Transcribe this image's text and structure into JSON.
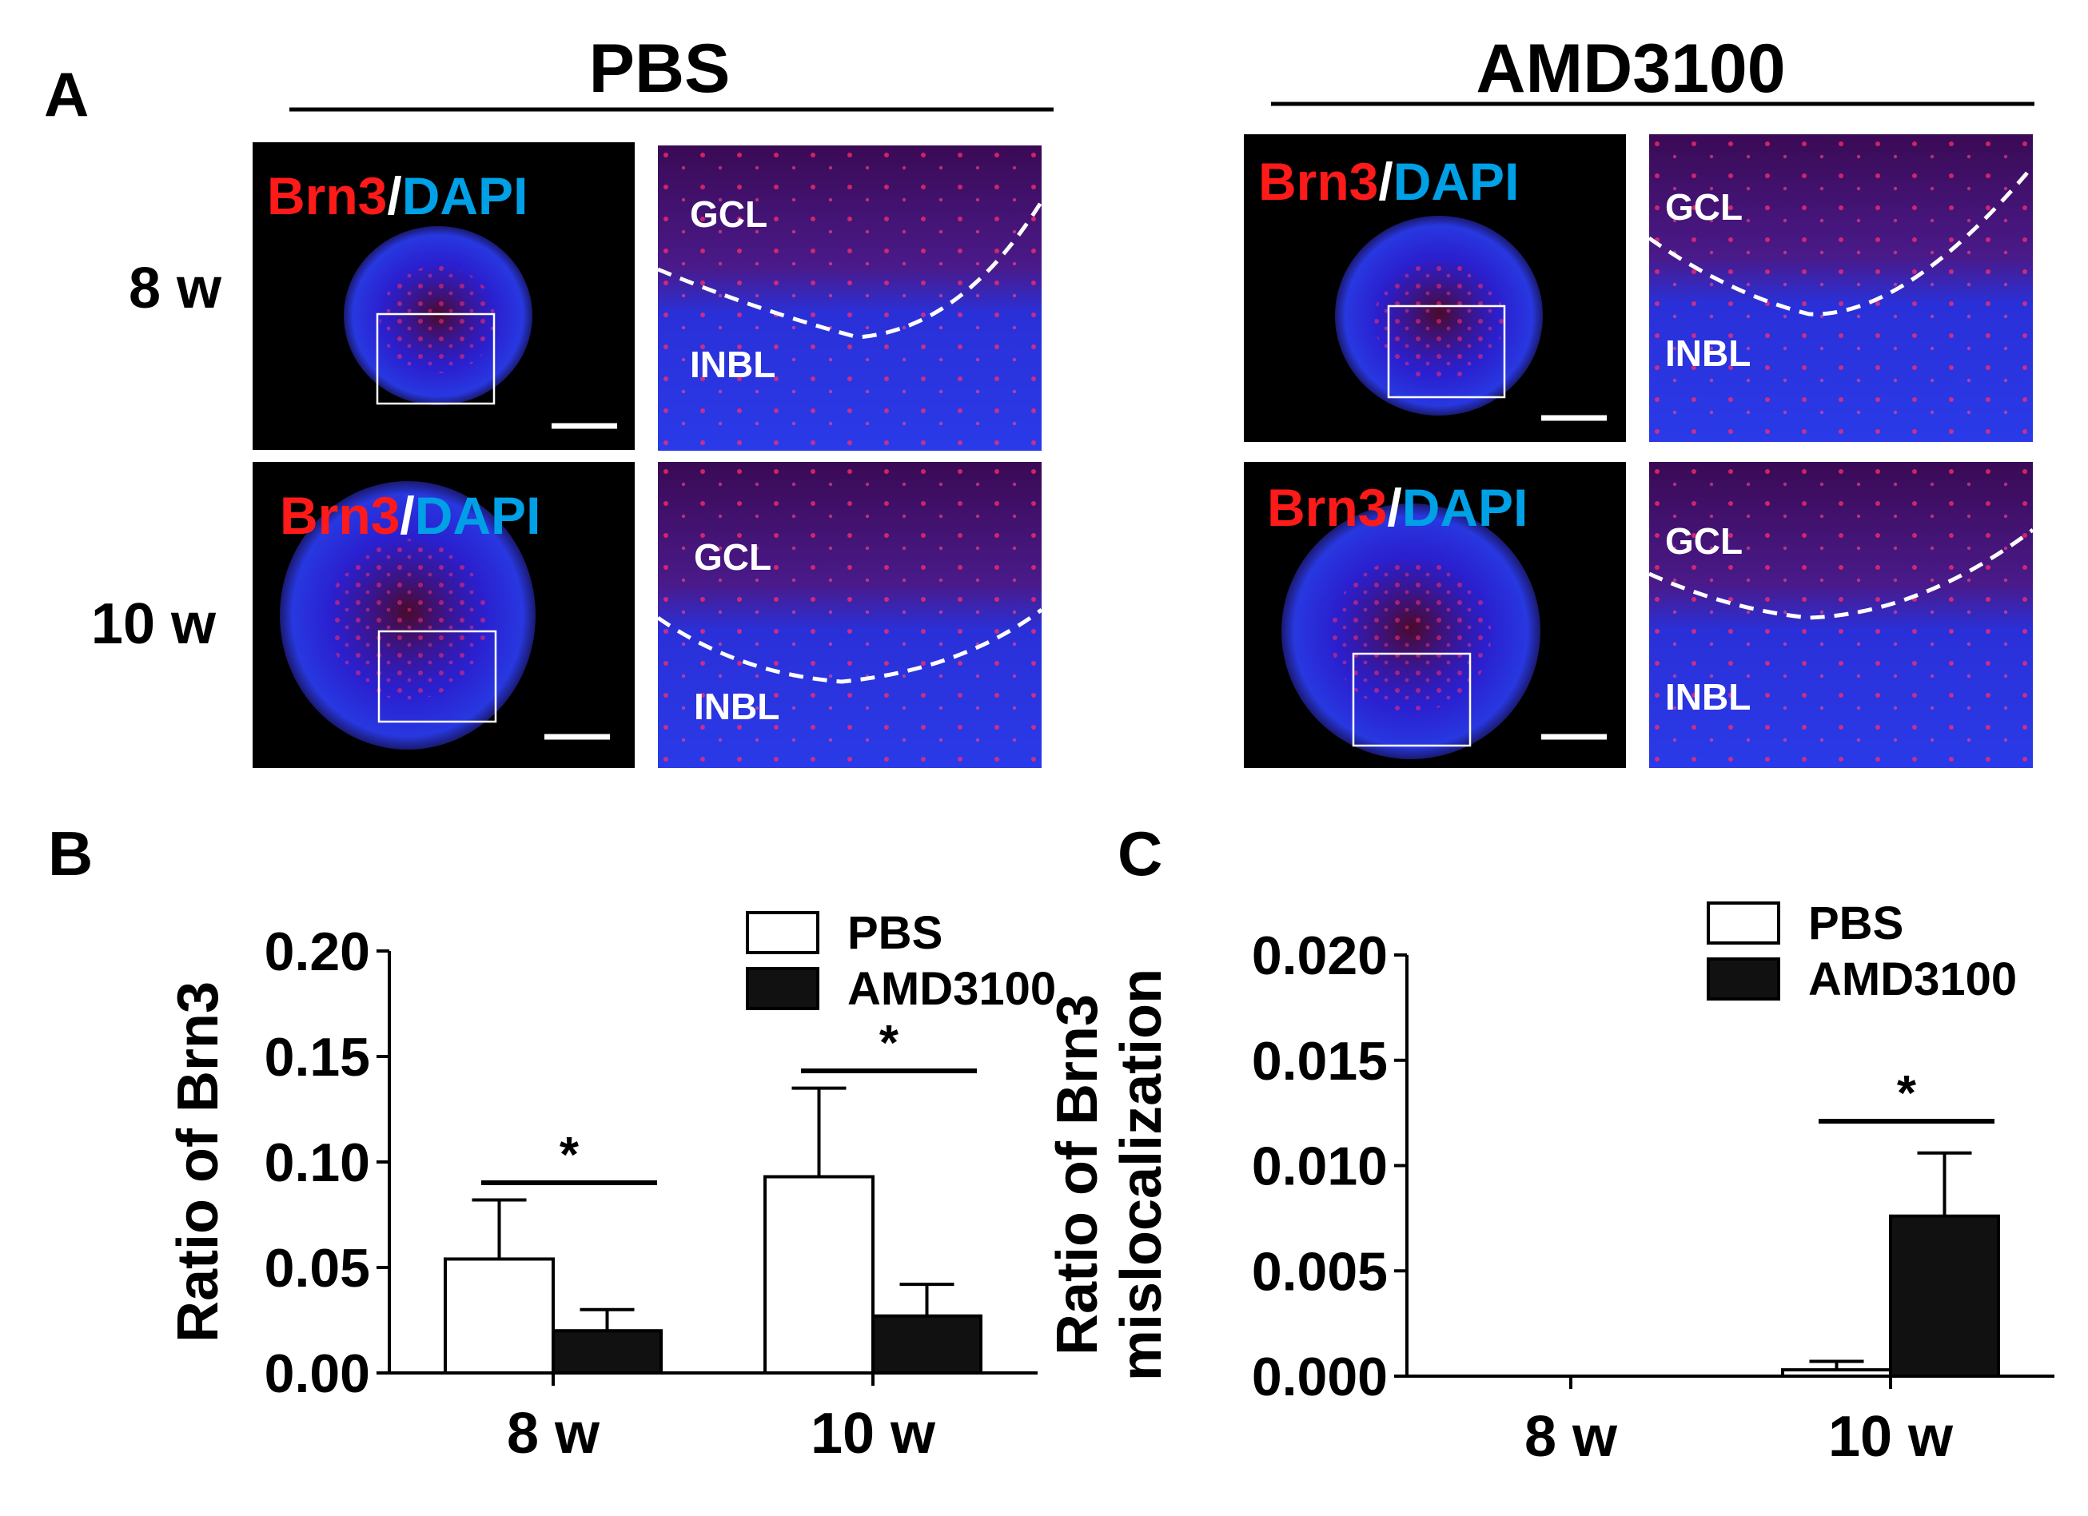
{
  "panel_a": {
    "letter": "A",
    "groups": [
      "PBS",
      "AMD3100"
    ],
    "rows": [
      "8 w",
      "10 w"
    ],
    "stain": {
      "marker": "Brn3",
      "slash": "/",
      "counter": "DAPI",
      "marker_color": "#ff1a1a",
      "slash_color": "#ffffff",
      "counter_color": "#00a0e6"
    },
    "layers": {
      "top": "GCL",
      "bottom": "INBL"
    }
  },
  "chart_data": [
    {
      "panel": "B",
      "type": "bar",
      "categories": [
        "8 w",
        "10 w"
      ],
      "series": [
        {
          "name": "PBS",
          "values": [
            0.054,
            0.093
          ],
          "errors": [
            0.028,
            0.042
          ],
          "fill": "#ffffff"
        },
        {
          "name": "AMD3100",
          "values": [
            0.02,
            0.027
          ],
          "errors": [
            0.01,
            0.015
          ],
          "fill": "#111111"
        }
      ],
      "ylabel": "Ratio of Brn3",
      "ylabel2": "",
      "ylim": [
        0,
        0.2
      ],
      "yticks": [
        "0.00",
        "0.05",
        "0.10",
        "0.15",
        "0.20"
      ],
      "yticks_values": [
        0,
        0.05,
        0.1,
        0.15,
        0.2
      ],
      "significance": [
        {
          "category": 0,
          "label": "*"
        },
        {
          "category": 1,
          "label": "*"
        }
      ],
      "legend_position": "top-right"
    },
    {
      "panel": "C",
      "type": "bar",
      "categories": [
        "8 w",
        "10 w"
      ],
      "series": [
        {
          "name": "PBS",
          "values": [
            0,
            0.0003
          ],
          "errors": [
            0,
            0.0004
          ],
          "fill": "#ffffff"
        },
        {
          "name": "AMD3100",
          "values": [
            0,
            0.0076
          ],
          "errors": [
            0,
            0.003
          ],
          "fill": "#111111"
        }
      ],
      "ylabel": "Ratio of Brn3",
      "ylabel2": "mislocalization",
      "ylim": [
        0,
        0.02
      ],
      "yticks": [
        "0.000",
        "0.005",
        "0.010",
        "0.015",
        "0.020"
      ],
      "yticks_values": [
        0,
        0.005,
        0.01,
        0.015,
        0.02
      ],
      "significance": [
        {
          "category": 1,
          "label": "*"
        }
      ],
      "legend_position": "top-right"
    }
  ]
}
